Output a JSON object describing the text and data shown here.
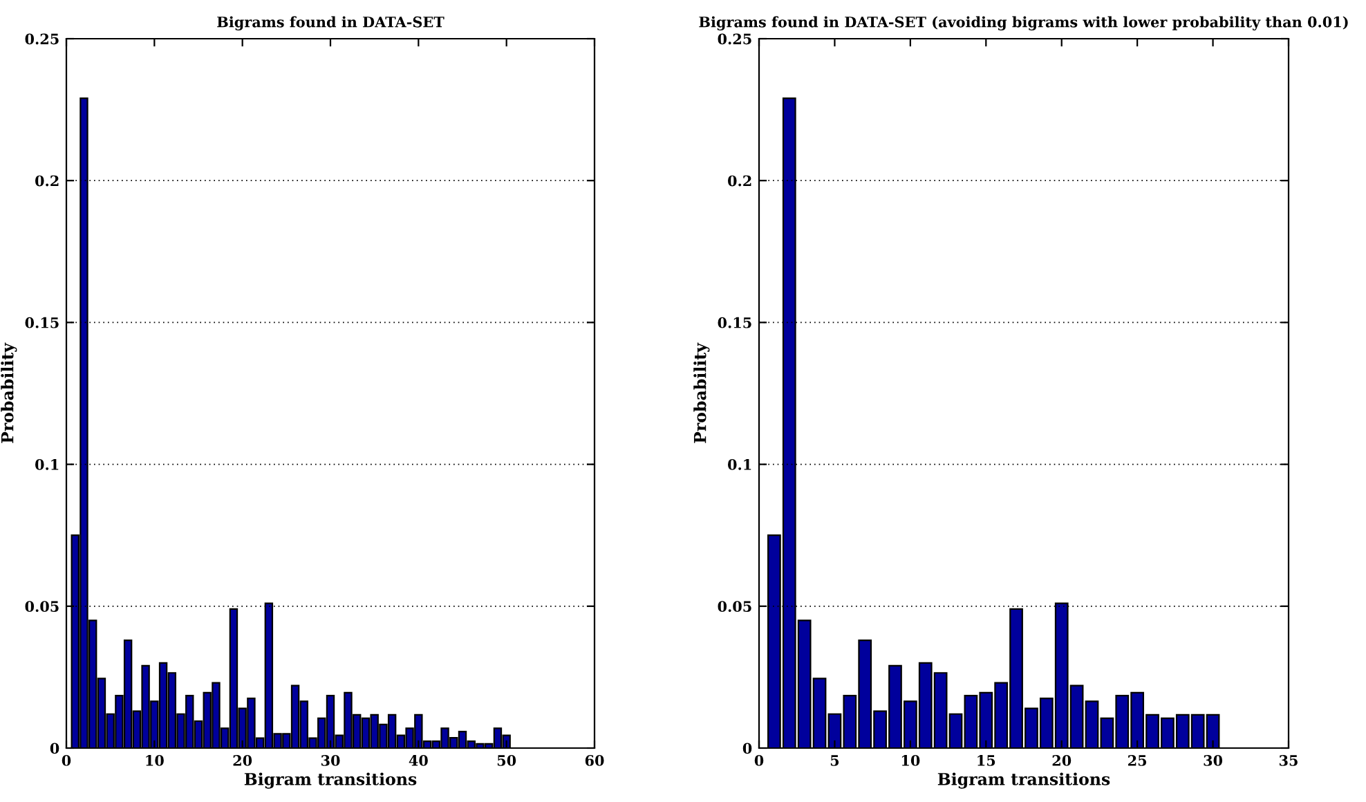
{
  "chart_data": [
    {
      "type": "bar",
      "title": "Bigrams found in DATA-SET",
      "xlabel": "Bigram transitions",
      "ylabel": "Probability",
      "x": [
        1,
        2,
        3,
        4,
        5,
        6,
        7,
        8,
        9,
        10,
        11,
        12,
        13,
        14,
        15,
        16,
        17,
        18,
        19,
        20,
        21,
        22,
        23,
        24,
        25,
        26,
        27,
        28,
        29,
        30,
        31,
        32,
        33,
        34,
        35,
        36,
        37,
        38,
        39,
        40,
        41,
        42,
        43,
        44,
        45,
        46,
        47,
        48,
        49,
        50
      ],
      "values": [
        0.075,
        0.229,
        0.045,
        0.0245,
        0.012,
        0.0185,
        0.038,
        0.013,
        0.029,
        0.0165,
        0.03,
        0.0265,
        0.012,
        0.0185,
        0.0095,
        0.0195,
        0.023,
        0.007,
        0.049,
        0.014,
        0.0175,
        0.0035,
        0.051,
        0.005,
        0.005,
        0.022,
        0.0165,
        0.0035,
        0.0105,
        0.0185,
        0.0045,
        0.0195,
        0.0117,
        0.0105,
        0.0117,
        0.0083,
        0.0117,
        0.0045,
        0.007,
        0.0117,
        0.0024,
        0.0024,
        0.007,
        0.0036,
        0.0058,
        0.0024,
        0.0015,
        0.0015,
        0.007,
        0.0045
      ],
      "color": "#00009c",
      "xlim": [
        0,
        60
      ],
      "xticks": [
        0,
        10,
        20,
        30,
        40,
        50,
        60
      ],
      "ylim": [
        0,
        0.25
      ],
      "yticks": [
        0,
        0.05,
        0.1,
        0.15,
        0.2,
        0.25
      ],
      "grid": "y"
    },
    {
      "type": "bar",
      "title": "Bigrams found in DATA-SET (avoiding bigrams with lower probability than 0.01)",
      "xlabel": "Bigram transitions",
      "ylabel": "Probability",
      "x": [
        1,
        2,
        3,
        4,
        5,
        6,
        7,
        8,
        9,
        10,
        11,
        12,
        13,
        14,
        15,
        16,
        17,
        18,
        19,
        20,
        21,
        22,
        23,
        24,
        25,
        26,
        27,
        28,
        29,
        30
      ],
      "values": [
        0.075,
        0.229,
        0.045,
        0.0245,
        0.012,
        0.0185,
        0.038,
        0.013,
        0.029,
        0.0165,
        0.03,
        0.0265,
        0.012,
        0.0185,
        0.0195,
        0.023,
        0.049,
        0.014,
        0.0175,
        0.051,
        0.022,
        0.0165,
        0.0105,
        0.0185,
        0.0195,
        0.0117,
        0.0105,
        0.0117,
        0.0117,
        0.0117
      ],
      "color": "#00009c",
      "xlim": [
        0,
        35
      ],
      "xticks": [
        0,
        5,
        10,
        15,
        20,
        25,
        30,
        35
      ],
      "ylim": [
        0,
        0.25
      ],
      "yticks": [
        0,
        0.05,
        0.1,
        0.15,
        0.2,
        0.25
      ],
      "grid": "y"
    }
  ]
}
